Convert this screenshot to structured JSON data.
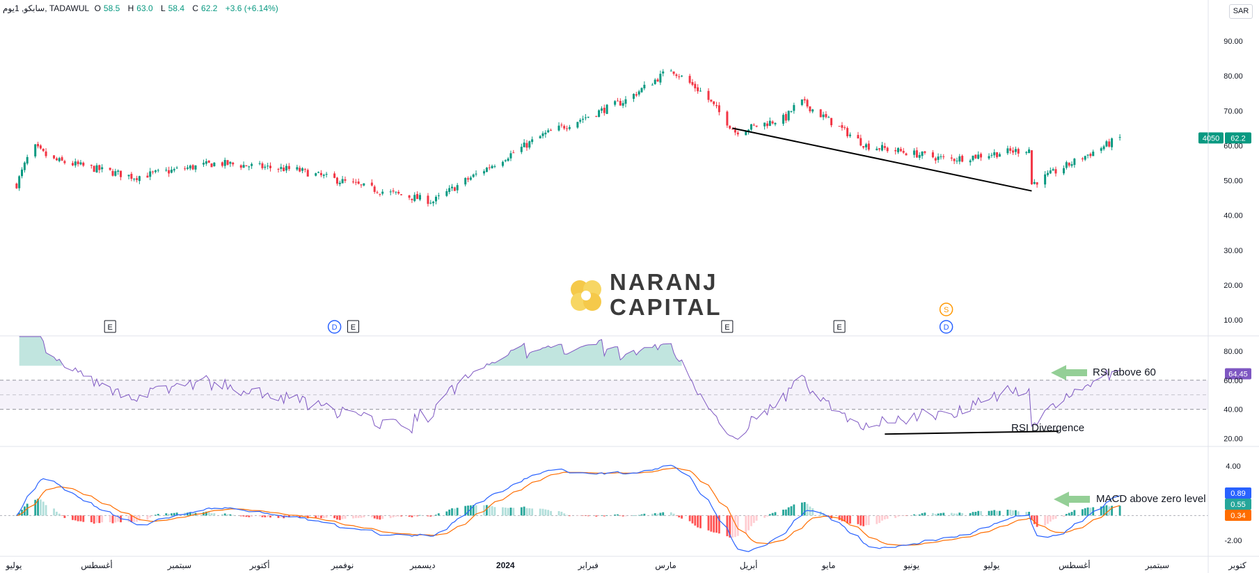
{
  "header": {
    "symbol": "سابكو, 1يوم, TADAWUL",
    "open_label": "O",
    "open": "58.5",
    "high_label": "H",
    "high": "63.0",
    "low_label": "L",
    "low": "58.4",
    "close_label": "C",
    "close": "62.2",
    "change": "+3.6 (+6.14%)"
  },
  "currency": "SAR",
  "colors": {
    "up": "#089981",
    "down": "#f23645",
    "rsi": "#7e57c2",
    "macd": "#2962ff",
    "signal": "#ff6d00",
    "hist_up_strong": "#26a69a",
    "hist_up_weak": "#b2dfdb",
    "hist_down_strong": "#ff5252",
    "hist_down_weak": "#ffcdd2",
    "logo_orange": "#f5c94a",
    "logo_text": "#3b3b3b"
  },
  "logo": {
    "line1": "NARANJ",
    "line2": "CAPITAL"
  },
  "chart_data": [
    {
      "type": "candlestick",
      "title": "",
      "ylim": [
        10,
        95
      ],
      "y_ticks": [
        "90.00",
        "80.00",
        "70.00",
        "60.00",
        "50.00",
        "40.00",
        "30.00",
        "20.00",
        "10.00"
      ],
      "last_price_label": {
        "symbol": "4050",
        "value": "62.2"
      },
      "monthly_closes": [
        {
          "month": "Jul 2023",
          "close": 56
        },
        {
          "month": "Aug 2023",
          "close": 51
        },
        {
          "month": "Sep 2023",
          "close": 55
        },
        {
          "month": "Oct 2023",
          "close": 53
        },
        {
          "month": "Nov 2023",
          "close": 47
        },
        {
          "month": "Dec 2023",
          "close": 49
        },
        {
          "month": "Jan 2024",
          "close": 63
        },
        {
          "month": "Feb 2024",
          "close": 73
        },
        {
          "month": "Mar 2024",
          "close": 75
        },
        {
          "month": "Apr 2024",
          "close": 68
        },
        {
          "month": "May 2024",
          "close": 60
        },
        {
          "month": "Jun 2024",
          "close": 56
        },
        {
          "month": "Jul 2024",
          "close": 59
        },
        {
          "month": "Aug 2024",
          "close": 62.2
        }
      ],
      "trendline": {
        "from": {
          "date": "2024-03-26",
          "price": 65
        },
        "to": {
          "date": "2024-07-16",
          "price": 47
        }
      },
      "event_markers": [
        {
          "date": "2023-08-06",
          "label": "E"
        },
        {
          "date": "2023-10-29",
          "label": "D"
        },
        {
          "date": "2023-11-05",
          "label": "E"
        },
        {
          "date": "2024-03-24",
          "label": "E"
        },
        {
          "date": "2024-05-05",
          "label": "E"
        },
        {
          "date": "2024-06-14",
          "label": "D"
        },
        {
          "date": "2024-06-14",
          "label": "S"
        }
      ]
    },
    {
      "type": "line",
      "name": "RSI",
      "ylim": [
        15,
        90
      ],
      "y_ticks": [
        "80.00",
        "60.00",
        "40.00",
        "20.00"
      ],
      "band": [
        40,
        60
      ],
      "last_value_label": "64.45",
      "divergence_line": {
        "from": {
          "date": "2024-05-22",
          "value": 23
        },
        "to": {
          "date": "2024-07-26",
          "value": 25
        }
      },
      "annotations": [
        {
          "text": "RSI above 60"
        },
        {
          "text": "RSI Divergence"
        }
      ]
    },
    {
      "type": "line+bar",
      "name": "MACD",
      "ylim": [
        -3.0,
        5.5
      ],
      "y_ticks": [
        "4.00",
        "-2.00"
      ],
      "value_labels": [
        {
          "value": "0.89",
          "color": "#2962ff"
        },
        {
          "value": "0.55",
          "color": "#26a69a"
        },
        {
          "value": "0.34",
          "color": "#ff6d00"
        }
      ],
      "annotations": [
        {
          "text": "MACD above zero level"
        }
      ]
    }
  ],
  "x_axis": {
    "labels": [
      {
        "date": "2023-07-01",
        "label": "يوليو"
      },
      {
        "date": "2023-08-01",
        "label": "أغسطس"
      },
      {
        "date": "2023-09-01",
        "label": "سبتمبر"
      },
      {
        "date": "2023-10-01",
        "label": "أكتوبر"
      },
      {
        "date": "2023-11-01",
        "label": "نوفمبر"
      },
      {
        "date": "2023-12-01",
        "label": "ديسمبر"
      },
      {
        "date": "2024-01-01",
        "label": "2024"
      },
      {
        "date": "2024-02-01",
        "label": "فبراير"
      },
      {
        "date": "2024-03-01",
        "label": "مارس"
      },
      {
        "date": "2024-04-01",
        "label": "أبريل"
      },
      {
        "date": "2024-05-01",
        "label": "مايو"
      },
      {
        "date": "2024-06-01",
        "label": "يونيو"
      },
      {
        "date": "2024-07-01",
        "label": "يوليو"
      },
      {
        "date": "2024-08-01",
        "label": "أغسطس"
      },
      {
        "date": "2024-09-01",
        "label": "سبتمبر"
      },
      {
        "date": "2024-10-01",
        "label": "كتوبر"
      }
    ]
  }
}
